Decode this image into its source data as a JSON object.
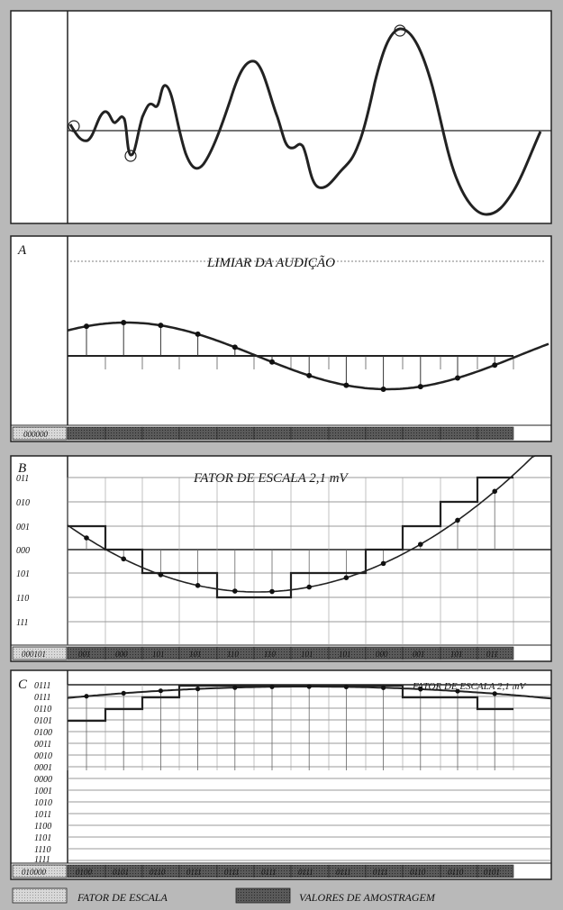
{
  "panel_wave": {},
  "panel_a": {
    "letter": "A",
    "title": "LIMIAR DA AUDIÇÃO",
    "scale_code": "000000",
    "codes": [
      "",
      "",
      "",
      "",
      "",
      "",
      "",
      "",
      "",
      "",
      "",
      ""
    ]
  },
  "panel_b": {
    "letter": "B",
    "title": "FATOR DE ESCALA 2,1 mV",
    "levels": [
      "011",
      "010",
      "001",
      "000",
      "101",
      "110",
      "111"
    ],
    "scale_code": "000101",
    "codes": [
      "001",
      "000",
      "101",
      "101",
      "110",
      "110",
      "101",
      "101",
      "000",
      "001",
      "101",
      "011"
    ]
  },
  "panel_c": {
    "letter": "C",
    "title": "FATOR DE ESCALA 2,1 mV",
    "levels": [
      "0111",
      "0111",
      "0110",
      "0101",
      "0100",
      "0011",
      "0010",
      "0001",
      "0000",
      "1001",
      "1010",
      "1011",
      "1100",
      "1101",
      "1110",
      "1111"
    ],
    "scale_code": "010000",
    "codes": [
      "0100",
      "0101",
      "0110",
      "0111",
      "0111",
      "0111",
      "0111",
      "0111",
      "0111",
      "0110",
      "0110",
      "0101"
    ]
  },
  "legend": {
    "scale_factor_label": "FATOR DE ESCALA",
    "sample_values_label": "VALORES DE AMOSTRAGEM",
    "scale_color": "#d2d2d2",
    "sample_color": "#555555"
  }
}
